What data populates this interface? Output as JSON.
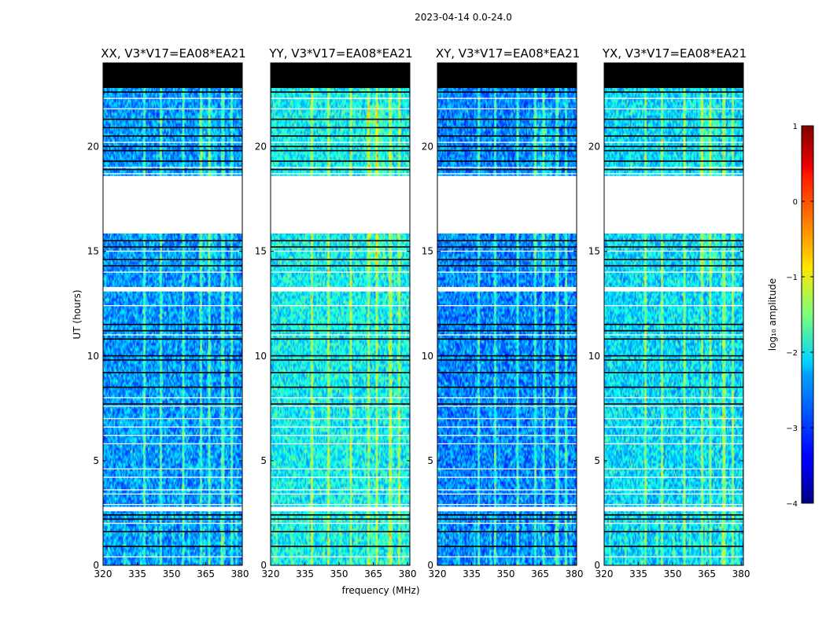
{
  "chart_data": {
    "type": "heatmap",
    "suptitle": "2023-04-14 0.0-24.0",
    "xlabel": "frequency (MHz)",
    "ylabel": "UT (hours)",
    "xlim": [
      320,
      381
    ],
    "ylim": [
      0,
      24
    ],
    "xticks": [
      320,
      335,
      350,
      365,
      380
    ],
    "yticks": [
      0,
      5,
      10,
      15,
      20
    ],
    "panels": [
      {
        "title": "XX, V3*V17=EA08*EA21",
        "polarization": "XX",
        "level": 0.0
      },
      {
        "title": "YY, V3*V17=EA08*EA21",
        "polarization": "YY",
        "level": 0.1
      },
      {
        "title": "XY, V3*V17=EA08*EA21",
        "polarization": "XY",
        "level": -0.02
      },
      {
        "title": "YX, V3*V17=EA08*EA21",
        "polarization": "YX",
        "level": 0.07
      }
    ],
    "no_data_hours": [
      [
        22.8,
        24.0
      ]
    ],
    "gap_hours": [
      [
        15.85,
        18.6
      ]
    ],
    "colorbar": {
      "label": "log₁₀ amplitude",
      "range": [
        -4,
        1
      ],
      "ticks": [
        1,
        0,
        -1,
        -2,
        -3,
        -4
      ],
      "tick_labels": [
        "1",
        "0",
        "−1",
        "−2",
        "−3",
        "−4"
      ],
      "colormap": "jet"
    }
  },
  "colors": {
    "no_data": "#000000",
    "gap": "#ffffff",
    "flag_line_dark": "#000000",
    "flag_line_light": "#ffffff"
  }
}
